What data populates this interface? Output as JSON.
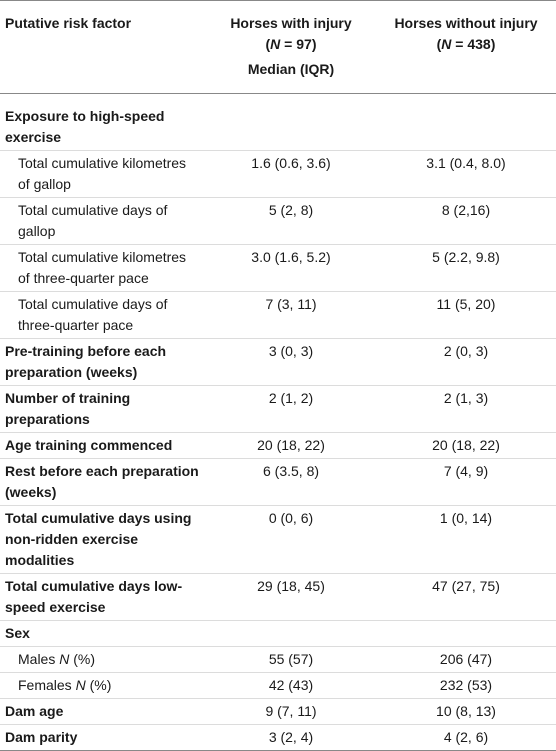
{
  "header": {
    "col0": "Putative risk factor",
    "col1_line1": "Horses with injury",
    "col1_n": "97",
    "col1_line3": "Median (IQR)",
    "col2_line1": "Horses without injury",
    "col2_n": "438"
  },
  "rows": [
    {
      "label": "Exposure to high-speed exercise",
      "bold": true,
      "sub": false,
      "v1": "",
      "v2": ""
    },
    {
      "label": "Total cumulative kilometres of gallop",
      "bold": false,
      "sub": true,
      "v1": "1.6 (0.6, 3.6)",
      "v2": "3.1 (0.4, 8.0)"
    },
    {
      "label": "Total cumulative days of gallop",
      "bold": false,
      "sub": true,
      "v1": "5 (2, 8)",
      "v2": "8 (2,16)"
    },
    {
      "label": "Total cumulative kilometres of three-quarter pace",
      "bold": false,
      "sub": true,
      "v1": "3.0 (1.6, 5.2)",
      "v2": "5 (2.2, 9.8)"
    },
    {
      "label": "Total cumulative days of three-quarter pace",
      "bold": false,
      "sub": true,
      "v1": "7 (3, 11)",
      "v2": "11 (5, 20)"
    },
    {
      "label": "Pre-training before each preparation (weeks)",
      "bold": true,
      "sub": false,
      "v1": "3 (0, 3)",
      "v2": "2 (0, 3)"
    },
    {
      "label": "Number of training preparations",
      "bold": true,
      "sub": false,
      "v1": "2 (1, 2)",
      "v2": "2 (1, 3)"
    },
    {
      "label": "Age training commenced",
      "bold": true,
      "sub": false,
      "v1": "20 (18, 22)",
      "v2": "20 (18, 22)"
    },
    {
      "label": "Rest before each preparation (weeks)",
      "bold": true,
      "sub": false,
      "v1": "6 (3.5, 8)",
      "v2": "7 (4, 9)"
    },
    {
      "label": "Total cumulative days using non-ridden exercise modalities",
      "bold": true,
      "sub": false,
      "v1": "0 (0, 6)",
      "v2": "1 (0, 14)"
    },
    {
      "label": "Total cumulative days low-speed exercise",
      "bold": true,
      "sub": false,
      "v1": "29 (18, 45)",
      "v2": "47 (27, 75)"
    },
    {
      "label": "Sex",
      "bold": true,
      "sub": false,
      "v1": "",
      "v2": ""
    },
    {
      "label": "Males",
      "italic_suffix": "N",
      "pct_suffix": "(%)",
      "bold": false,
      "sub": true,
      "v1": "55 (57)",
      "v2": "206 (47)"
    },
    {
      "label": "Females",
      "italic_suffix": "N",
      "pct_suffix": "(%)",
      "bold": false,
      "sub": true,
      "v1": "42 (43)",
      "v2": "232 (53)"
    },
    {
      "label": "Dam age",
      "bold": true,
      "sub": false,
      "v1": "9 (7, 11)",
      "v2": "10 (8, 13)"
    },
    {
      "label": "Dam parity",
      "bold": true,
      "sub": false,
      "v1": "3 (2, 4)",
      "v2": "4 (2, 6)"
    }
  ]
}
